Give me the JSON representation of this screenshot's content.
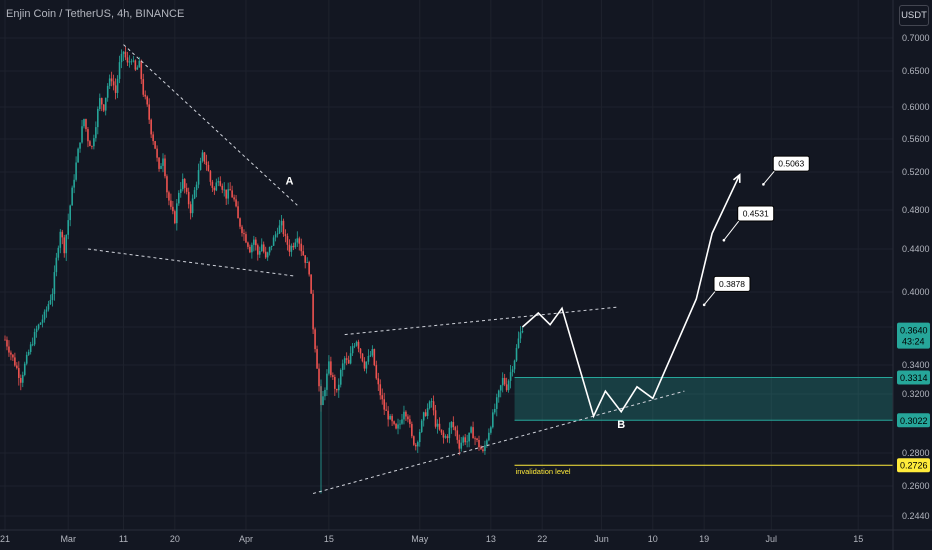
{
  "header": {
    "title": "Enjin Coin / TetherUS, 4h, BINANCE",
    "unit": "USDT"
  },
  "chart_data": {
    "type": "candlestick",
    "ylim": [
      0.235,
      0.72
    ],
    "y_ticks": [
      "0.7000",
      "0.6500",
      "0.6000",
      "0.5600",
      "0.5200",
      "0.4800",
      "0.4400",
      "0.4000",
      "0.3700",
      "0.3400",
      "0.3200",
      "0.2800",
      "0.2600",
      "0.2440"
    ],
    "y_tick_values": [
      0.7,
      0.65,
      0.6,
      0.56,
      0.52,
      0.48,
      0.44,
      0.4,
      0.37,
      0.34,
      0.32,
      0.28,
      0.26,
      0.244
    ],
    "x_ticks": [
      {
        "label": "21",
        "t": 0
      },
      {
        "label": "Mar",
        "t": 16
      },
      {
        "label": "11",
        "t": 30
      },
      {
        "label": "20",
        "t": 43
      },
      {
        "label": "Apr",
        "t": 61
      },
      {
        "label": "15",
        "t": 82
      },
      {
        "label": "May",
        "t": 105
      },
      {
        "label": "13",
        "t": 123
      },
      {
        "label": "22",
        "t": 136
      },
      {
        "label": "Jun",
        "t": 151
      },
      {
        "label": "10",
        "t": 164
      },
      {
        "label": "19",
        "t": 177
      },
      {
        "label": "Jul",
        "t": 194
      },
      {
        "label": "15",
        "t": 216
      }
    ],
    "price_path": [
      [
        0,
        0.36
      ],
      [
        2,
        0.345
      ],
      [
        4,
        0.33
      ],
      [
        6,
        0.35
      ],
      [
        8,
        0.368
      ],
      [
        10,
        0.38
      ],
      [
        12,
        0.4
      ],
      [
        13,
        0.43
      ],
      [
        14,
        0.46
      ],
      [
        15,
        0.44
      ],
      [
        16,
        0.47
      ],
      [
        17,
        0.5
      ],
      [
        18,
        0.53
      ],
      [
        19,
        0.56
      ],
      [
        20,
        0.585
      ],
      [
        21,
        0.56
      ],
      [
        22,
        0.55
      ],
      [
        23,
        0.58
      ],
      [
        24,
        0.61
      ],
      [
        25,
        0.6
      ],
      [
        26,
        0.63
      ],
      [
        27,
        0.64
      ],
      [
        28,
        0.62
      ],
      [
        29,
        0.66
      ],
      [
        30,
        0.68
      ],
      [
        31,
        0.66
      ],
      [
        32,
        0.67
      ],
      [
        33,
        0.65
      ],
      [
        34,
        0.66
      ],
      [
        35,
        0.62
      ],
      [
        36,
        0.6
      ],
      [
        37,
        0.57
      ],
      [
        38,
        0.55
      ],
      [
        39,
        0.52
      ],
      [
        40,
        0.54
      ],
      [
        41,
        0.5
      ],
      [
        42,
        0.48
      ],
      [
        43,
        0.47
      ],
      [
        44,
        0.5
      ],
      [
        45,
        0.51
      ],
      [
        46,
        0.495
      ],
      [
        47,
        0.48
      ],
      [
        48,
        0.5
      ],
      [
        49,
        0.52
      ],
      [
        50,
        0.54
      ],
      [
        51,
        0.53
      ],
      [
        52,
        0.51
      ],
      [
        53,
        0.5
      ],
      [
        54,
        0.515
      ],
      [
        55,
        0.505
      ],
      [
        56,
        0.495
      ],
      [
        57,
        0.5
      ],
      [
        58,
        0.49
      ],
      [
        59,
        0.47
      ],
      [
        60,
        0.46
      ],
      [
        61,
        0.45
      ],
      [
        62,
        0.44
      ],
      [
        63,
        0.45
      ],
      [
        64,
        0.435
      ],
      [
        65,
        0.445
      ],
      [
        66,
        0.43
      ],
      [
        67,
        0.44
      ],
      [
        68,
        0.45
      ],
      [
        69,
        0.46
      ],
      [
        70,
        0.465
      ],
      [
        71,
        0.45
      ],
      [
        72,
        0.44
      ],
      [
        73,
        0.445
      ],
      [
        74,
        0.455
      ],
      [
        75,
        0.44
      ],
      [
        76,
        0.43
      ],
      [
        77,
        0.42
      ],
      [
        78,
        0.37
      ],
      [
        79,
        0.34
      ],
      [
        80,
        0.31
      ],
      [
        81,
        0.325
      ],
      [
        82,
        0.34
      ],
      [
        83,
        0.33
      ],
      [
        84,
        0.32
      ],
      [
        85,
        0.335
      ],
      [
        86,
        0.345
      ],
      [
        87,
        0.34
      ],
      [
        88,
        0.355
      ],
      [
        89,
        0.36
      ],
      [
        90,
        0.35
      ],
      [
        91,
        0.34
      ],
      [
        92,
        0.345
      ],
      [
        93,
        0.35
      ],
      [
        94,
        0.33
      ],
      [
        95,
        0.32
      ],
      [
        96,
        0.31
      ],
      [
        97,
        0.305
      ],
      [
        98,
        0.3
      ],
      [
        99,
        0.295
      ],
      [
        100,
        0.3
      ],
      [
        101,
        0.31
      ],
      [
        102,
        0.305
      ],
      [
        103,
        0.29
      ],
      [
        104,
        0.285
      ],
      [
        105,
        0.295
      ],
      [
        106,
        0.305
      ],
      [
        107,
        0.31
      ],
      [
        108,
        0.315
      ],
      [
        109,
        0.3
      ],
      [
        110,
        0.295
      ],
      [
        111,
        0.29
      ],
      [
        112,
        0.292
      ],
      [
        113,
        0.3
      ],
      [
        114,
        0.295
      ],
      [
        115,
        0.285
      ],
      [
        116,
        0.29
      ],
      [
        117,
        0.288
      ],
      [
        118,
        0.295
      ],
      [
        119,
        0.29
      ],
      [
        120,
        0.285
      ],
      [
        121,
        0.28
      ],
      [
        122,
        0.29
      ],
      [
        123,
        0.3
      ],
      [
        124,
        0.31
      ],
      [
        125,
        0.32
      ],
      [
        126,
        0.33
      ],
      [
        127,
        0.325
      ],
      [
        128,
        0.335
      ],
      [
        129,
        0.345
      ],
      [
        130,
        0.36
      ],
      [
        131,
        0.37
      ]
    ],
    "current_price": {
      "value": "0.3640",
      "countdown": "43:24",
      "color": "#26a69a"
    },
    "zone": {
      "top": 0.3314,
      "bottom": 0.3022,
      "t_start": 129,
      "t_end": 230,
      "color": "#26a69a"
    },
    "price_tags": [
      {
        "value": "0.3314",
        "color": "#26a69a",
        "price": 0.3314
      },
      {
        "value": "0.3022",
        "color": "#26a69a",
        "price": 0.3022
      },
      {
        "value": "0.2726",
        "color": "#ffeb3b",
        "price": 0.2726
      }
    ],
    "invalidation": {
      "label": "invalidation level",
      "price": 0.2726,
      "t_start": 129,
      "color": "#ffeb3b"
    },
    "trendlines": [
      {
        "p1": [
          30,
          0.69
        ],
        "p2": [
          74,
          0.485
        ]
      },
      {
        "p1": [
          21,
          0.44
        ],
        "p2": [
          73,
          0.415
        ]
      },
      {
        "p1": [
          86,
          0.364
        ],
        "p2": [
          155,
          0.387
        ]
      },
      {
        "p1": [
          78,
          0.256
        ],
        "p2": [
          172,
          0.322
        ]
      }
    ],
    "projection": [
      [
        131,
        0.37
      ],
      [
        135,
        0.382
      ],
      [
        138,
        0.372
      ],
      [
        141,
        0.386
      ],
      [
        149,
        0.305
      ],
      [
        152,
        0.322
      ],
      [
        156,
        0.308
      ],
      [
        160,
        0.325
      ],
      [
        164,
        0.317
      ],
      [
        175,
        0.394
      ],
      [
        179,
        0.456
      ],
      [
        186,
        0.517
      ]
    ],
    "annotations": [
      {
        "label": "A",
        "t": 71,
        "price": 0.507
      },
      {
        "label": "B",
        "t": 155,
        "price": 0.297
      }
    ],
    "targets": [
      {
        "value": "0.3878",
        "t": 180,
        "price": 0.409,
        "arrow_to_t": 177,
        "arrow_to_price": 0.389
      },
      {
        "value": "0.4531",
        "t": 186,
        "price": 0.478,
        "arrow_to_t": 182,
        "arrow_to_price": 0.449
      },
      {
        "value": "0.5063",
        "t": 195,
        "price": 0.532,
        "arrow_to_t": 192,
        "arrow_to_price": 0.507
      }
    ]
  }
}
